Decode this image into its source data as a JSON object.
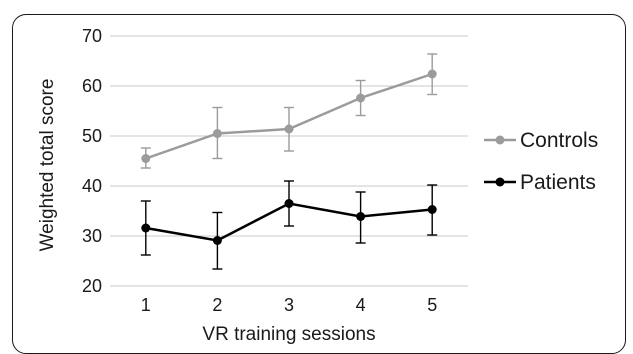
{
  "chart_data": {
    "type": "line",
    "xlabel": "VR training sessions",
    "ylabel": "Weighted total score",
    "categories": [
      "1",
      "2",
      "3",
      "4",
      "5"
    ],
    "ylim": [
      20,
      70
    ],
    "yticks": [
      "20",
      "30",
      "40",
      "50",
      "60",
      "70"
    ],
    "grid": "horizontal",
    "legend_position": "right",
    "series": [
      {
        "name": "Controls",
        "color": "#9b9b9b",
        "values": [
          45.5,
          50.5,
          51.4,
          57.6,
          62.4
        ],
        "error_low": [
          43.6,
          45.5,
          47.0,
          54.1,
          58.3
        ],
        "error_high": [
          47.6,
          55.7,
          55.7,
          61.1,
          66.4
        ]
      },
      {
        "name": "Patients",
        "color": "#000000",
        "values": [
          31.6,
          29.1,
          36.5,
          33.9,
          35.3
        ],
        "error_low": [
          26.2,
          23.4,
          32.0,
          28.6,
          30.2
        ],
        "error_high": [
          37.0,
          34.7,
          41.0,
          38.8,
          40.2
        ]
      }
    ]
  }
}
